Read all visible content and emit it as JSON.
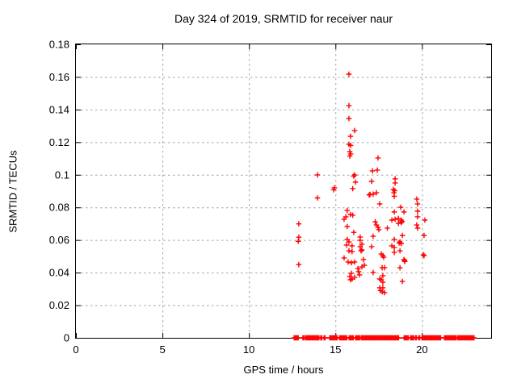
{
  "colors": {
    "marker": "#ff0000",
    "grid": "#a2a2a2",
    "border": "#000000",
    "background": "#ffffff"
  },
  "chart_data": {
    "type": "scatter",
    "title": "Day 324 of 2019, SRMTID for receiver naur",
    "xlabel": "GPS time / hours",
    "ylabel": "SRMTID / TECUs",
    "xlim": [
      0,
      24
    ],
    "ylim": [
      0,
      0.18
    ],
    "xticks": [
      0,
      5,
      10,
      15,
      20
    ],
    "xtick_labels": [
      "0",
      "5",
      "10",
      "15",
      "20"
    ],
    "yticks": [
      0,
      0.02,
      0.04,
      0.06,
      0.08,
      0.1,
      0.12,
      0.14,
      0.16,
      0.18
    ],
    "ytick_labels": [
      "0",
      "0.02",
      "0.04",
      "0.06",
      "0.08",
      "0.1",
      "0.12",
      "0.14",
      "0.16",
      "0.18"
    ],
    "grid": true,
    "legend": "none",
    "marker": "plus",
    "series_color": "#ff0000",
    "points": [
      [
        15.78,
        0.1617
      ],
      [
        15.78,
        0.1424
      ],
      [
        15.78,
        0.1345
      ],
      [
        16.11,
        0.1271
      ],
      [
        15.87,
        0.1236
      ],
      [
        15.78,
        0.1187
      ],
      [
        15.88,
        0.118
      ],
      [
        15.83,
        0.1142
      ],
      [
        15.88,
        0.1128
      ],
      [
        15.83,
        0.1115
      ],
      [
        17.46,
        0.1103
      ],
      [
        17.42,
        0.1029
      ],
      [
        17.14,
        0.1024
      ],
      [
        13.96,
        0.0999
      ],
      [
        16.11,
        0.0999
      ],
      [
        16.05,
        0.0992
      ],
      [
        18.45,
        0.0975
      ],
      [
        17.09,
        0.096
      ],
      [
        16.16,
        0.0955
      ],
      [
        18.45,
        0.095
      ],
      [
        14.94,
        0.092
      ],
      [
        14.9,
        0.0908
      ],
      [
        16.0,
        0.0915
      ],
      [
        18.35,
        0.091
      ],
      [
        18.42,
        0.0902
      ],
      [
        18.38,
        0.089
      ],
      [
        17.37,
        0.089
      ],
      [
        17.0,
        0.088
      ],
      [
        16.95,
        0.0876
      ],
      [
        17.18,
        0.0881
      ],
      [
        18.4,
        0.0868
      ],
      [
        13.96,
        0.0858
      ],
      [
        19.7,
        0.0851
      ],
      [
        19.75,
        0.0821
      ],
      [
        17.56,
        0.0821
      ],
      [
        18.77,
        0.0801
      ],
      [
        15.68,
        0.0781
      ],
      [
        19.75,
        0.0777
      ],
      [
        18.4,
        0.0772
      ],
      [
        18.96,
        0.0772
      ],
      [
        15.87,
        0.0756
      ],
      [
        16.0,
        0.0752
      ],
      [
        15.6,
        0.0742
      ],
      [
        19.75,
        0.0742
      ],
      [
        18.64,
        0.0732
      ],
      [
        15.5,
        0.0727
      ],
      [
        18.45,
        0.0727
      ],
      [
        20.17,
        0.0722
      ],
      [
        18.26,
        0.0722
      ],
      [
        18.8,
        0.0722
      ],
      [
        18.85,
        0.0714
      ],
      [
        17.3,
        0.0712
      ],
      [
        18.8,
        0.0707
      ],
      [
        18.64,
        0.0702
      ],
      [
        12.88,
        0.0699
      ],
      [
        17.37,
        0.0692
      ],
      [
        19.7,
        0.0692
      ],
      [
        15.68,
        0.0683
      ],
      [
        17.46,
        0.0678
      ],
      [
        18.0,
        0.0673
      ],
      [
        19.75,
        0.0673
      ],
      [
        17.51,
        0.0663
      ],
      [
        16.06,
        0.0647
      ],
      [
        18.87,
        0.0628
      ],
      [
        20.12,
        0.0628
      ],
      [
        17.18,
        0.0623
      ],
      [
        16.43,
        0.0618
      ],
      [
        12.88,
        0.0617
      ],
      [
        15.68,
        0.0603
      ],
      [
        18.4,
        0.0603
      ],
      [
        16.43,
        0.0598
      ],
      [
        12.85,
        0.0592
      ],
      [
        15.78,
        0.0588
      ],
      [
        18.73,
        0.0588
      ],
      [
        18.68,
        0.0582
      ],
      [
        18.8,
        0.0578
      ],
      [
        16.53,
        0.0574
      ],
      [
        15.64,
        0.0569
      ],
      [
        15.96,
        0.0564
      ],
      [
        18.26,
        0.0564
      ],
      [
        16.43,
        0.0559
      ],
      [
        17.09,
        0.0559
      ],
      [
        18.4,
        0.0554
      ],
      [
        16.53,
        0.0539
      ],
      [
        15.78,
        0.0534
      ],
      [
        16.48,
        0.0534
      ],
      [
        18.73,
        0.0534
      ],
      [
        15.96,
        0.0529
      ],
      [
        18.4,
        0.0524
      ],
      [
        17.65,
        0.0514
      ],
      [
        20.08,
        0.0509
      ],
      [
        17.74,
        0.0504
      ],
      [
        20.12,
        0.0504
      ],
      [
        17.79,
        0.0494
      ],
      [
        15.5,
        0.049
      ],
      [
        16.62,
        0.048
      ],
      [
        18.96,
        0.048
      ],
      [
        19.0,
        0.0474
      ],
      [
        19.01,
        0.0468
      ],
      [
        15.73,
        0.0465
      ],
      [
        16.11,
        0.0465
      ],
      [
        15.92,
        0.046
      ],
      [
        12.88,
        0.0449
      ],
      [
        16.67,
        0.0445
      ],
      [
        16.53,
        0.0435
      ],
      [
        17.7,
        0.043
      ],
      [
        17.84,
        0.043
      ],
      [
        18.73,
        0.043
      ],
      [
        16.3,
        0.0425
      ],
      [
        16.34,
        0.0406
      ],
      [
        17.18,
        0.0401
      ],
      [
        15.92,
        0.0396
      ],
      [
        16.39,
        0.0386
      ],
      [
        17.74,
        0.0381
      ],
      [
        15.83,
        0.0376
      ],
      [
        16.11,
        0.0371
      ],
      [
        15.96,
        0.0361
      ],
      [
        17.56,
        0.0361
      ],
      [
        15.87,
        0.0356
      ],
      [
        17.65,
        0.0356
      ],
      [
        18.87,
        0.0346
      ],
      [
        17.74,
        0.0341
      ],
      [
        17.56,
        0.0307
      ],
      [
        17.74,
        0.0307
      ],
      [
        17.6,
        0.029
      ],
      [
        17.7,
        0.0282
      ],
      [
        17.84,
        0.0277
      ]
    ],
    "zero_band_segments": [
      [
        12.61,
        12.87
      ],
      [
        13.12,
        13.22
      ],
      [
        13.27,
        14.06
      ],
      [
        14.15,
        14.25
      ],
      [
        14.34,
        14.43
      ],
      [
        14.67,
        15.14
      ],
      [
        15.23,
        15.7
      ],
      [
        15.79,
        16.07
      ],
      [
        16.16,
        16.4
      ],
      [
        16.49,
        18.69
      ],
      [
        18.97,
        19.25
      ],
      [
        19.34,
        19.53
      ],
      [
        19.62,
        19.71
      ],
      [
        19.81,
        19.9
      ],
      [
        20.0,
        21.12
      ],
      [
        21.3,
        21.96
      ],
      [
        22.05,
        23.03
      ]
    ]
  }
}
